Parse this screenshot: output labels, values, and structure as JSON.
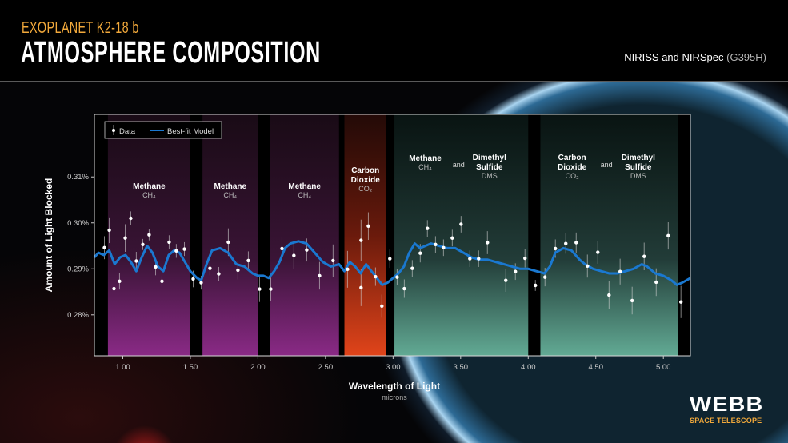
{
  "header": {
    "kicker": "EXOPLANET K2-18 b",
    "title": "ATMOSPHERE COMPOSITION",
    "instrument": "NIRISS and NIRSpec",
    "instrument_mode": "(G395H)"
  },
  "logo": {
    "name": "WEBB",
    "subtitle": "SPACE TELESCOPE"
  },
  "colors": {
    "kicker": "#f2a93b",
    "model": "#1a78d0",
    "data": "#ffffff",
    "methane_band": "#7a2a7a",
    "co2_band": "#d8401a",
    "mixed_band": "#5fa890"
  },
  "chart_data": {
    "type": "scatter",
    "xlabel": "Wavelength of Light",
    "xlabel_unit": "microns",
    "ylabel": "Amount of Light Blocked",
    "xlim": [
      0.79,
      5.2
    ],
    "ylim": [
      0.2711,
      0.3236
    ],
    "xticks": [
      1.0,
      1.5,
      2.0,
      2.5,
      3.0,
      3.5,
      4.0,
      4.5,
      5.0
    ],
    "xtick_labels": [
      "1.00",
      "1.50",
      "2.00",
      "2.50",
      "3.00",
      "3.50",
      "4.00",
      "4.50",
      "5.00"
    ],
    "yticks": [
      0.28,
      0.29,
      0.3,
      0.31
    ],
    "ytick_labels": [
      "0.28%",
      "0.29%",
      "0.30%",
      "0.31%"
    ],
    "grid": false,
    "legend": {
      "position": "top-left",
      "entries": [
        "Data",
        "Best-fit Model"
      ]
    },
    "bands": [
      {
        "range": [
          0.89,
          1.5
        ],
        "kind": "methane",
        "label": "Methane",
        "formula": "CH₄"
      },
      {
        "range": [
          1.59,
          2.0
        ],
        "kind": "methane",
        "label": "Methane",
        "formula": "CH₄"
      },
      {
        "range": [
          2.09,
          2.6
        ],
        "kind": "methane",
        "label": "Methane",
        "formula": "CH₄"
      },
      {
        "range": [
          2.64,
          2.95
        ],
        "kind": "co2",
        "label": "Carbon Dioxide",
        "formula": "CO₂"
      },
      {
        "range": [
          3.01,
          4.0
        ],
        "kind": "mixed",
        "label": "Methane",
        "formula": "CH₄",
        "joiner": "and",
        "label2": "Dimethyl Sulfide",
        "formula2": "DMS"
      },
      {
        "range": [
          4.09,
          5.11
        ],
        "kind": "mixed",
        "label": "Carbon Dioxide",
        "formula": "CO₂",
        "joiner": "and",
        "label2": "Dimethyl Sulfide",
        "formula2": "DMS"
      }
    ],
    "series": [
      {
        "name": "Data",
        "type": "scatter",
        "x": [
          0.864,
          0.9,
          0.935,
          0.976,
          1.018,
          1.059,
          1.1,
          1.148,
          1.195,
          1.243,
          1.29,
          1.343,
          1.396,
          1.456,
          1.521,
          1.58,
          1.645,
          1.71,
          1.781,
          1.852,
          1.929,
          2.012,
          2.095,
          2.178,
          2.266,
          2.361,
          2.456,
          2.556,
          2.663,
          2.763,
          2.763,
          2.817,
          2.87,
          2.917,
          2.976,
          3.03,
          3.083,
          3.142,
          3.201,
          3.254,
          3.314,
          3.373,
          3.438,
          3.503,
          3.568,
          3.633,
          3.698,
          3.834,
          3.905,
          3.976,
          4.053,
          4.124,
          4.201,
          4.278,
          4.355,
          4.438,
          4.515,
          4.598,
          4.68,
          4.769,
          4.858,
          4.947,
          5.036,
          5.13
        ],
        "y": [
          0.2946,
          0.2984,
          0.2857,
          0.2873,
          0.2967,
          0.301,
          0.2917,
          0.2953,
          0.2974,
          0.2904,
          0.2873,
          0.2958,
          0.2939,
          0.2943,
          0.2878,
          0.287,
          0.2901,
          0.2889,
          0.2958,
          0.2897,
          0.2918,
          0.2856,
          0.2856,
          0.2944,
          0.2929,
          0.2941,
          0.2885,
          0.2918,
          0.2899,
          0.2962,
          0.2859,
          0.2993,
          0.2883,
          0.2819,
          0.2922,
          0.2882,
          0.2857,
          0.2901,
          0.2934,
          0.2988,
          0.2953,
          0.2946,
          0.2967,
          0.2997,
          0.2922,
          0.2922,
          0.2957,
          0.2875,
          0.2894,
          0.2923,
          0.2864,
          0.2882,
          0.2944,
          0.2955,
          0.2957,
          0.2906,
          0.2936,
          0.2843,
          0.2894,
          0.2831,
          0.2927,
          0.2871,
          0.2972,
          0.2828
        ],
        "err": [
          0.0025,
          0.0028,
          0.002,
          0.0018,
          0.003,
          0.0015,
          0.002,
          0.0012,
          0.0012,
          0.0018,
          0.0012,
          0.0015,
          0.0015,
          0.0015,
          0.0018,
          0.0015,
          0.0015,
          0.0015,
          0.003,
          0.002,
          0.002,
          0.0028,
          0.0025,
          0.0025,
          0.003,
          0.0025,
          0.003,
          0.0035,
          0.004,
          0.0045,
          0.004,
          0.003,
          0.002,
          0.0025,
          0.002,
          0.0018,
          0.002,
          0.0018,
          0.002,
          0.0018,
          0.0018,
          0.0018,
          0.0018,
          0.0018,
          0.0018,
          0.0018,
          0.0025,
          0.0025,
          0.0018,
          0.002,
          0.0012,
          0.002,
          0.002,
          0.0022,
          0.0022,
          0.0025,
          0.0025,
          0.003,
          0.0028,
          0.003,
          0.003,
          0.003,
          0.003,
          0.0035
        ]
      },
      {
        "name": "Best-fit Model",
        "type": "line",
        "x": [
          0.79,
          0.82,
          0.86,
          0.9,
          0.94,
          0.98,
          1.02,
          1.06,
          1.1,
          1.14,
          1.18,
          1.22,
          1.26,
          1.3,
          1.34,
          1.38,
          1.42,
          1.46,
          1.5,
          1.55,
          1.58,
          1.62,
          1.66,
          1.72,
          1.78,
          1.84,
          1.9,
          1.96,
          2.0,
          2.04,
          2.08,
          2.12,
          2.16,
          2.2,
          2.24,
          2.3,
          2.36,
          2.42,
          2.48,
          2.54,
          2.6,
          2.64,
          2.68,
          2.72,
          2.76,
          2.8,
          2.84,
          2.88,
          2.92,
          2.96,
          3.0,
          3.04,
          3.08,
          3.12,
          3.16,
          3.2,
          3.24,
          3.28,
          3.34,
          3.4,
          3.46,
          3.52,
          3.58,
          3.64,
          3.7,
          3.76,
          3.82,
          3.88,
          3.94,
          4.0,
          4.06,
          4.12,
          4.16,
          4.2,
          4.26,
          4.32,
          4.38,
          4.42,
          4.48,
          4.54,
          4.6,
          4.66,
          4.72,
          4.78,
          4.84,
          4.88,
          4.94,
          5.0,
          5.06,
          5.1,
          5.14,
          5.2
        ],
        "y": [
          0.2925,
          0.2935,
          0.293,
          0.294,
          0.291,
          0.2925,
          0.293,
          0.2915,
          0.2895,
          0.2925,
          0.295,
          0.2935,
          0.2905,
          0.2895,
          0.293,
          0.294,
          0.2935,
          0.2915,
          0.2895,
          0.288,
          0.2875,
          0.291,
          0.294,
          0.2945,
          0.2935,
          0.291,
          0.2905,
          0.289,
          0.2885,
          0.2885,
          0.288,
          0.2895,
          0.2915,
          0.2945,
          0.2955,
          0.296,
          0.2955,
          0.2935,
          0.2915,
          0.2905,
          0.291,
          0.2895,
          0.2915,
          0.2905,
          0.289,
          0.291,
          0.2895,
          0.288,
          0.2865,
          0.287,
          0.288,
          0.289,
          0.2905,
          0.2935,
          0.2955,
          0.2945,
          0.295,
          0.2955,
          0.295,
          0.2945,
          0.2945,
          0.2935,
          0.2925,
          0.292,
          0.292,
          0.2915,
          0.291,
          0.2905,
          0.29,
          0.29,
          0.2895,
          0.289,
          0.2905,
          0.2935,
          0.2945,
          0.294,
          0.292,
          0.291,
          0.29,
          0.2895,
          0.289,
          0.289,
          0.2895,
          0.29,
          0.291,
          0.2905,
          0.289,
          0.2885,
          0.2875,
          0.2865,
          0.287,
          0.288
        ]
      }
    ]
  }
}
